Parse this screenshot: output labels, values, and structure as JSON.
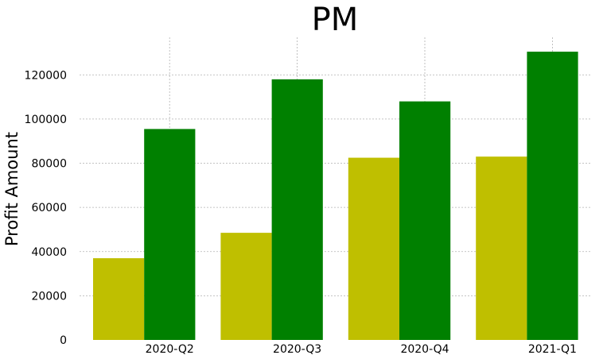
{
  "chart_data": {
    "type": "bar",
    "title": "PM",
    "xlabel": "",
    "ylabel": "Profit Amount",
    "categories": [
      "2020-Q2",
      "2020-Q3",
      "2020-Q4",
      "2021-Q1"
    ],
    "series": [
      {
        "color": "#bfbf00",
        "values": [
          37000,
          48500,
          82500,
          83000
        ]
      },
      {
        "color": "#008000",
        "values": [
          95500,
          118000,
          108000,
          130500
        ]
      }
    ],
    "ylim": [
      0,
      137000
    ],
    "yticks": [
      0,
      20000,
      40000,
      60000,
      80000,
      100000,
      120000
    ],
    "ytick_labels": [
      "0",
      "20000",
      "40000",
      "60000",
      "80000",
      "100000",
      "120000"
    ],
    "grid": true,
    "legend": "none"
  }
}
